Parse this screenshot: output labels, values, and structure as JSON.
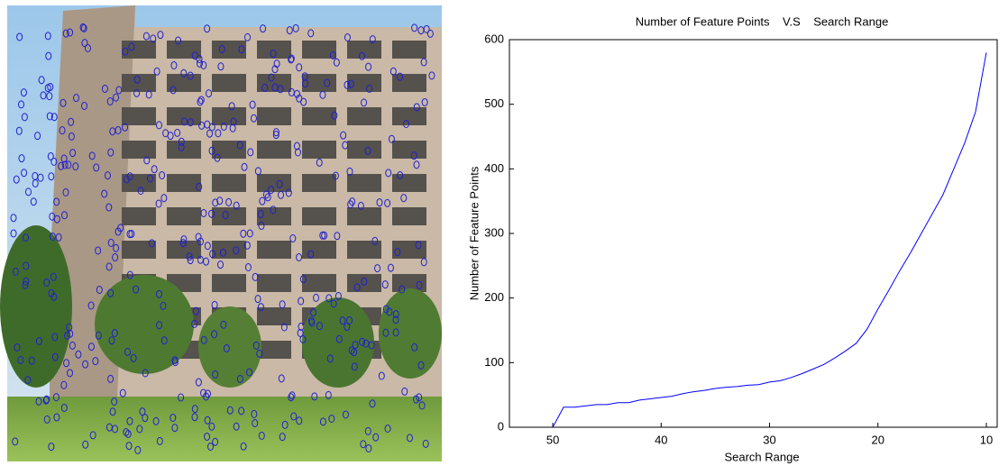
{
  "chart_data": {
    "type": "line",
    "title": "Number of Feature Points    V.S    Search Range",
    "x_label": "Search Range",
    "y_label": "Number of Feature Points",
    "x": [
      50,
      49,
      48,
      47,
      46,
      45,
      44,
      43,
      42,
      41,
      40,
      39,
      38,
      37,
      36,
      35,
      34,
      33,
      32,
      31,
      30,
      29,
      28,
      27,
      26,
      25,
      24,
      23,
      22,
      21,
      20,
      19,
      18,
      17,
      16,
      15,
      14,
      13,
      12,
      11,
      10
    ],
    "series": [
      {
        "color": "#0000ff",
        "values": [
          0,
          31,
          31,
          33,
          35,
          35,
          38,
          38,
          42,
          44,
          46,
          48,
          52,
          55,
          57,
          60,
          62,
          63,
          65,
          66,
          70,
          72,
          77,
          83,
          90,
          97,
          107,
          118,
          130,
          152,
          183,
          212,
          242,
          270,
          300,
          330,
          360,
          400,
          440,
          488,
          580
        ]
      }
    ],
    "xlim": [
      54,
      9
    ],
    "xticks": [
      50,
      40,
      30,
      20,
      10
    ],
    "ylim": [
      0,
      600
    ],
    "yticks": [
      0,
      100,
      200,
      300,
      400,
      500,
      600
    ]
  }
}
